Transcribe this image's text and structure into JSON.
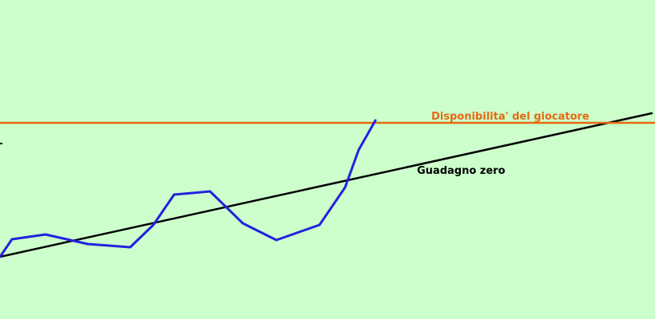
{
  "chart_data": {
    "type": "line",
    "title": "",
    "xlabel": "",
    "ylabel": "",
    "grid": false,
    "legend": "none",
    "xlim": [
      0,
      820
    ],
    "ylim": [
      0,
      400
    ],
    "background_color": "#ccffcc",
    "series": [
      {
        "color": "#2222dd",
        "x": [
          0,
          15,
          57,
          110,
          163,
          192,
          218,
          263,
          304,
          346,
          400,
          432,
          449,
          470
        ],
        "y": [
          78,
          100,
          106,
          94,
          90,
          118,
          156,
          160,
          120,
          99,
          118,
          165,
          212,
          249
        ]
      },
      {
        "name": "Guadagno zero",
        "color": "#000000",
        "x": [
          0,
          816
        ],
        "y": [
          78,
          258
        ]
      },
      {
        "name": "Disponibilita' del giocatore",
        "color": "#e66a10",
        "x": [
          0,
          820
        ],
        "y": [
          246,
          246
        ]
      }
    ],
    "annotations": [
      {
        "text": "Disponibilita' del giocatore",
        "color": "#e66a10",
        "x": 540,
        "y": 250
      },
      {
        "text": "Guadagno zero",
        "color": "#000000",
        "x": 522,
        "y": 182
      }
    ],
    "tick_marks": [
      {
        "axis": "y",
        "value": 220
      }
    ]
  }
}
